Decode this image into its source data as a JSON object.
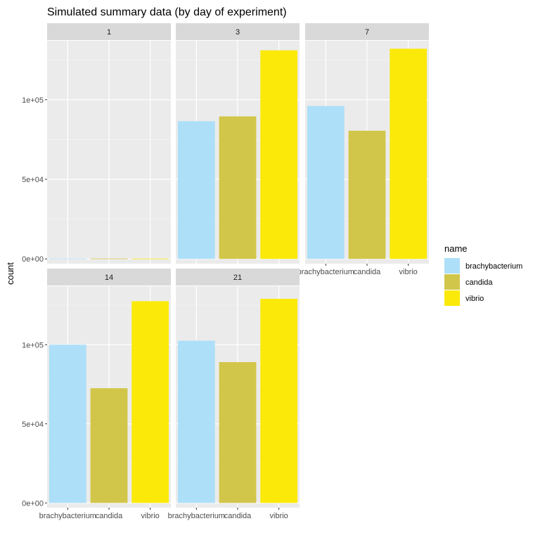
{
  "chart_data": {
    "type": "bar",
    "title": "Simulated summary data (by day of experiment)",
    "xlabel": "",
    "ylabel": "count",
    "categories": [
      "brachybacterium",
      "candida",
      "vibrio"
    ],
    "ylim": [
      -3000,
      137000
    ],
    "y_ticks": [
      {
        "value": 0,
        "label": "0e+00"
      },
      {
        "value": 50000,
        "label": "5e+04"
      },
      {
        "value": 100000,
        "label": "1e+05"
      }
    ],
    "facets": [
      {
        "label": "1",
        "values": [
          200,
          250,
          180
        ]
      },
      {
        "label": "3",
        "values": [
          86500,
          89500,
          131000
        ]
      },
      {
        "label": "7",
        "values": [
          96000,
          80500,
          132000
        ]
      },
      {
        "label": "14",
        "values": [
          100000,
          72500,
          127500
        ]
      },
      {
        "label": "21",
        "values": [
          102500,
          89000,
          129000
        ]
      }
    ],
    "colors": [
      "#addfF8",
      "#d2c64a",
      "#fbe90a"
    ],
    "grid": true,
    "legend": {
      "title": "name",
      "position": "right",
      "entries": [
        "brachybacterium",
        "candida",
        "vibrio"
      ]
    }
  }
}
